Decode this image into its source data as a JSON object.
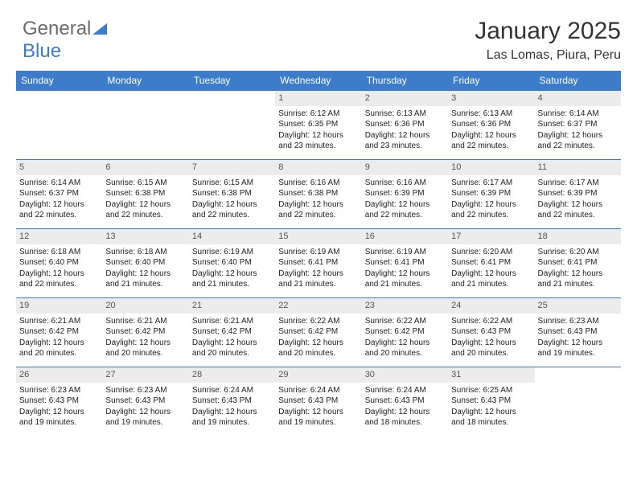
{
  "logo": {
    "text1": "General",
    "text2": "Blue",
    "icon_color": "#3d7cc9"
  },
  "title": "January 2025",
  "subtitle": "Las Lomas, Piura, Peru",
  "header_bg": "#3d7cc9",
  "header_fg": "#ffffff",
  "daynum_bg": "#ececec",
  "border_color": "#3d7cc9",
  "weekdays": [
    "Sunday",
    "Monday",
    "Tuesday",
    "Wednesday",
    "Thursday",
    "Friday",
    "Saturday"
  ],
  "weeks": [
    [
      null,
      null,
      null,
      {
        "n": "1",
        "sunrise": "6:12 AM",
        "sunset": "6:35 PM",
        "daylight": "12 hours and 23 minutes."
      },
      {
        "n": "2",
        "sunrise": "6:13 AM",
        "sunset": "6:36 PM",
        "daylight": "12 hours and 23 minutes."
      },
      {
        "n": "3",
        "sunrise": "6:13 AM",
        "sunset": "6:36 PM",
        "daylight": "12 hours and 22 minutes."
      },
      {
        "n": "4",
        "sunrise": "6:14 AM",
        "sunset": "6:37 PM",
        "daylight": "12 hours and 22 minutes."
      }
    ],
    [
      {
        "n": "5",
        "sunrise": "6:14 AM",
        "sunset": "6:37 PM",
        "daylight": "12 hours and 22 minutes."
      },
      {
        "n": "6",
        "sunrise": "6:15 AM",
        "sunset": "6:38 PM",
        "daylight": "12 hours and 22 minutes."
      },
      {
        "n": "7",
        "sunrise": "6:15 AM",
        "sunset": "6:38 PM",
        "daylight": "12 hours and 22 minutes."
      },
      {
        "n": "8",
        "sunrise": "6:16 AM",
        "sunset": "6:38 PM",
        "daylight": "12 hours and 22 minutes."
      },
      {
        "n": "9",
        "sunrise": "6:16 AM",
        "sunset": "6:39 PM",
        "daylight": "12 hours and 22 minutes."
      },
      {
        "n": "10",
        "sunrise": "6:17 AM",
        "sunset": "6:39 PM",
        "daylight": "12 hours and 22 minutes."
      },
      {
        "n": "11",
        "sunrise": "6:17 AM",
        "sunset": "6:39 PM",
        "daylight": "12 hours and 22 minutes."
      }
    ],
    [
      {
        "n": "12",
        "sunrise": "6:18 AM",
        "sunset": "6:40 PM",
        "daylight": "12 hours and 22 minutes."
      },
      {
        "n": "13",
        "sunrise": "6:18 AM",
        "sunset": "6:40 PM",
        "daylight": "12 hours and 21 minutes."
      },
      {
        "n": "14",
        "sunrise": "6:19 AM",
        "sunset": "6:40 PM",
        "daylight": "12 hours and 21 minutes."
      },
      {
        "n": "15",
        "sunrise": "6:19 AM",
        "sunset": "6:41 PM",
        "daylight": "12 hours and 21 minutes."
      },
      {
        "n": "16",
        "sunrise": "6:19 AM",
        "sunset": "6:41 PM",
        "daylight": "12 hours and 21 minutes."
      },
      {
        "n": "17",
        "sunrise": "6:20 AM",
        "sunset": "6:41 PM",
        "daylight": "12 hours and 21 minutes."
      },
      {
        "n": "18",
        "sunrise": "6:20 AM",
        "sunset": "6:41 PM",
        "daylight": "12 hours and 21 minutes."
      }
    ],
    [
      {
        "n": "19",
        "sunrise": "6:21 AM",
        "sunset": "6:42 PM",
        "daylight": "12 hours and 20 minutes."
      },
      {
        "n": "20",
        "sunrise": "6:21 AM",
        "sunset": "6:42 PM",
        "daylight": "12 hours and 20 minutes."
      },
      {
        "n": "21",
        "sunrise": "6:21 AM",
        "sunset": "6:42 PM",
        "daylight": "12 hours and 20 minutes."
      },
      {
        "n": "22",
        "sunrise": "6:22 AM",
        "sunset": "6:42 PM",
        "daylight": "12 hours and 20 minutes."
      },
      {
        "n": "23",
        "sunrise": "6:22 AM",
        "sunset": "6:42 PM",
        "daylight": "12 hours and 20 minutes."
      },
      {
        "n": "24",
        "sunrise": "6:22 AM",
        "sunset": "6:43 PM",
        "daylight": "12 hours and 20 minutes."
      },
      {
        "n": "25",
        "sunrise": "6:23 AM",
        "sunset": "6:43 PM",
        "daylight": "12 hours and 19 minutes."
      }
    ],
    [
      {
        "n": "26",
        "sunrise": "6:23 AM",
        "sunset": "6:43 PM",
        "daylight": "12 hours and 19 minutes."
      },
      {
        "n": "27",
        "sunrise": "6:23 AM",
        "sunset": "6:43 PM",
        "daylight": "12 hours and 19 minutes."
      },
      {
        "n": "28",
        "sunrise": "6:24 AM",
        "sunset": "6:43 PM",
        "daylight": "12 hours and 19 minutes."
      },
      {
        "n": "29",
        "sunrise": "6:24 AM",
        "sunset": "6:43 PM",
        "daylight": "12 hours and 19 minutes."
      },
      {
        "n": "30",
        "sunrise": "6:24 AM",
        "sunset": "6:43 PM",
        "daylight": "12 hours and 18 minutes."
      },
      {
        "n": "31",
        "sunrise": "6:25 AM",
        "sunset": "6:43 PM",
        "daylight": "12 hours and 18 minutes."
      },
      null
    ]
  ],
  "labels": {
    "sunrise": "Sunrise:",
    "sunset": "Sunset:",
    "daylight": "Daylight:"
  }
}
